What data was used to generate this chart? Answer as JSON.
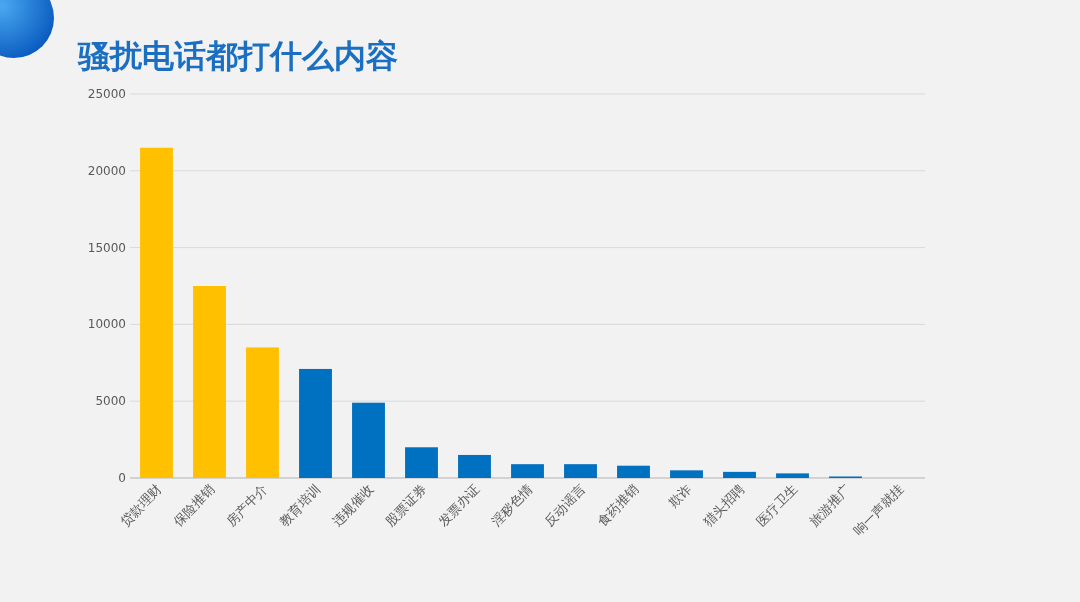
{
  "chart_data": {
    "type": "bar",
    "title": "骚扰电话都打什么内容",
    "categories": [
      "贷款理财",
      "保险推销",
      "房产中介",
      "教育培训",
      "违规催收",
      "股票证券",
      "发票办证",
      "淫秽色情",
      "反动谣言",
      "食药推销",
      "欺诈",
      "猎头招聘",
      "医疗卫生",
      "旅游推广",
      "响一声就挂"
    ],
    "values": [
      21500,
      12500,
      8500,
      7100,
      4900,
      2000,
      1500,
      900,
      900,
      800,
      500,
      400,
      300,
      100,
      0
    ],
    "colors": [
      "#ffc000",
      "#ffc000",
      "#ffc000",
      "#0070c0",
      "#0070c0",
      "#0070c0",
      "#0070c0",
      "#0070c0",
      "#0070c0",
      "#0070c0",
      "#0070c0",
      "#0070c0",
      "#0070c0",
      "#0070c0",
      "#0070c0"
    ],
    "ylim": [
      0,
      25000
    ],
    "yticks": [
      0,
      5000,
      10000,
      15000,
      20000,
      25000
    ],
    "grid": "y"
  }
}
